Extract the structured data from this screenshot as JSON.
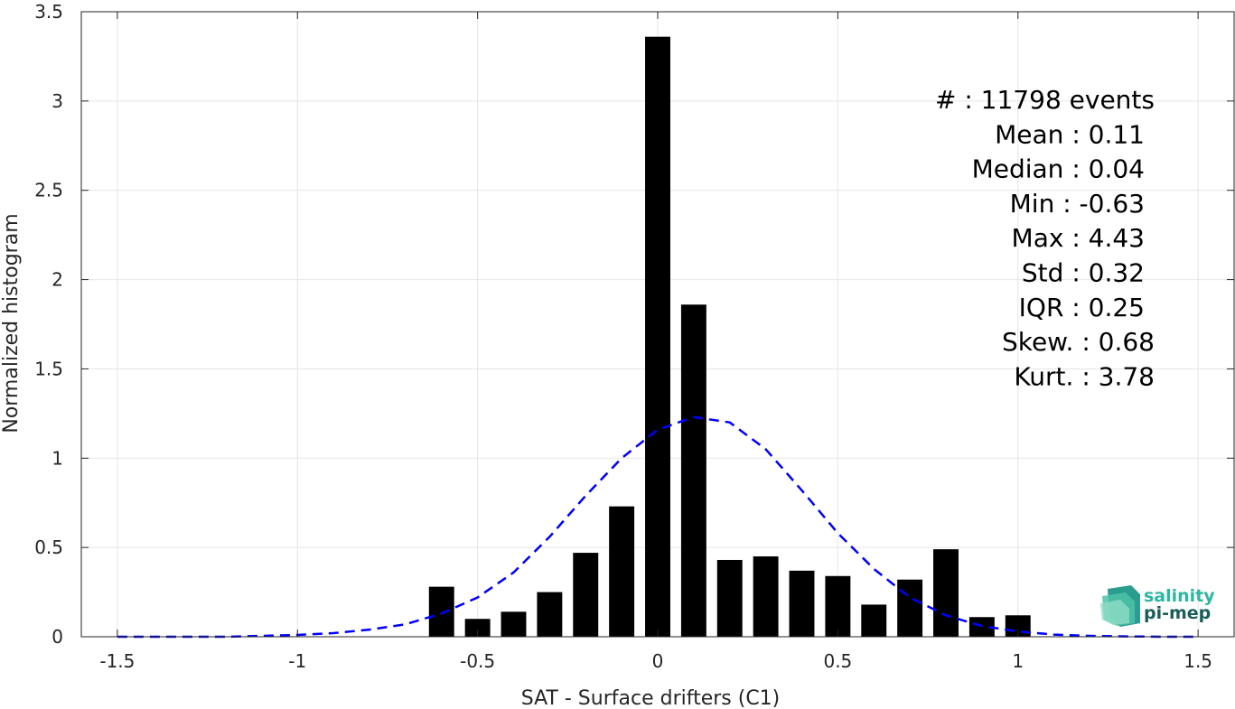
{
  "chart_data": {
    "type": "bar",
    "xlabel": "SAT - Surface drifters (C1)",
    "ylabel": "Normalized histogram",
    "xlim": [
      -1.6,
      1.6
    ],
    "ylim": [
      0,
      3.5
    ],
    "x_ticks": [
      -1.5,
      -1,
      -0.5,
      0,
      0.5,
      1,
      1.5
    ],
    "x_tick_labels": [
      "-1.5",
      "-1",
      "-0.5",
      "0",
      "0.5",
      "1",
      "1.5"
    ],
    "y_ticks": [
      0,
      0.5,
      1,
      1.5,
      2,
      2.5,
      3,
      3.5
    ],
    "y_tick_labels": [
      "0",
      "0.5",
      "1",
      "1.5",
      "2",
      "2.5",
      "3",
      "3.5"
    ],
    "grid": true,
    "bar_width": 0.07,
    "bars": {
      "x": [
        -0.6,
        -0.5,
        -0.4,
        -0.3,
        -0.2,
        -0.1,
        0.0,
        0.1,
        0.2,
        0.3,
        0.4,
        0.5,
        0.6,
        0.7,
        0.8,
        0.9,
        1.0
      ],
      "values": [
        0.28,
        0.1,
        0.14,
        0.25,
        0.47,
        0.73,
        3.36,
        1.86,
        0.43,
        0.45,
        0.37,
        0.34,
        0.18,
        0.32,
        0.49,
        0.11,
        0.12
      ]
    },
    "fit_curve": {
      "style": "dashed",
      "color": "#0000ff",
      "x": [
        -1.5,
        -1.4,
        -1.3,
        -1.2,
        -1.1,
        -1.0,
        -0.9,
        -0.8,
        -0.7,
        -0.6,
        -0.5,
        -0.4,
        -0.3,
        -0.2,
        -0.1,
        0.0,
        0.1,
        0.2,
        0.3,
        0.4,
        0.5,
        0.6,
        0.7,
        0.8,
        0.9,
        1.0,
        1.1,
        1.2,
        1.3,
        1.4,
        1.5
      ],
      "y": [
        0.0,
        0.0,
        0.0,
        0.0,
        0.005,
        0.01,
        0.02,
        0.04,
        0.07,
        0.13,
        0.22,
        0.36,
        0.56,
        0.79,
        1.0,
        1.16,
        1.23,
        1.2,
        1.05,
        0.82,
        0.58,
        0.38,
        0.22,
        0.12,
        0.06,
        0.03,
        0.012,
        0.005,
        0.002,
        0.0,
        0.0
      ]
    },
    "stats": [
      "#  : 11798 events",
      "Mean : 0.11",
      "Median : 0.04",
      "Min : -0.63",
      "Max : 4.43",
      "Std : 0.32",
      "IQR : 0.25",
      "Skew. : 0.68",
      "Kurt. : 3.78"
    ],
    "logo": {
      "line1": "salinity",
      "line2": "pi-mep",
      "color1": "#2db6a0",
      "color2": "#1a5e57"
    },
    "colors": {
      "bar": "#000000",
      "grid": "#e6e6e6",
      "axis": "#262626",
      "fit": "#0000ff"
    }
  }
}
